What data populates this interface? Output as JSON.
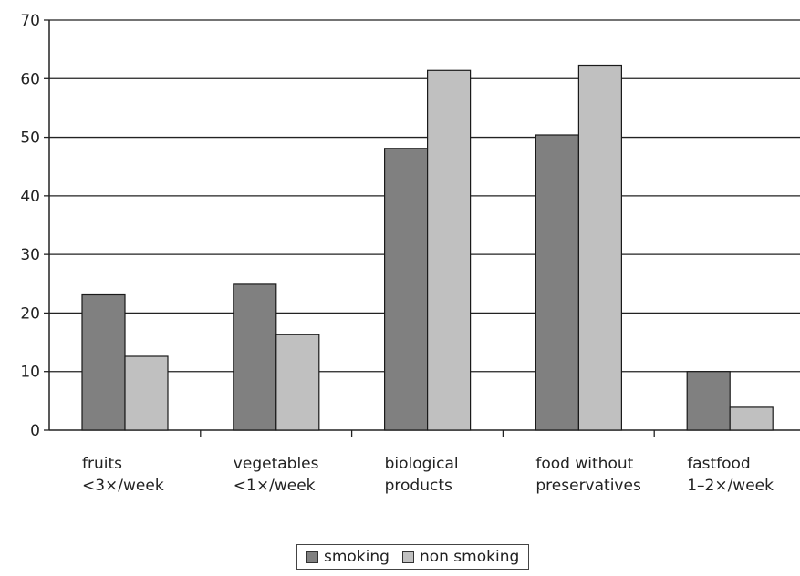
{
  "chart_data": {
    "type": "bar",
    "categories": [
      [
        "fruits",
        "<3×/week"
      ],
      [
        "vegetables",
        "<1×/week"
      ],
      [
        "biological",
        "products"
      ],
      [
        "food without",
        "preservatives"
      ],
      [
        "fastfood",
        "1–2×/week"
      ]
    ],
    "series": [
      {
        "name": "smoking",
        "values": [
          23.1,
          24.9,
          48.1,
          50.4,
          10.0
        ],
        "color": "#808080"
      },
      {
        "name": "non smoking",
        "values": [
          12.6,
          16.3,
          61.4,
          62.3,
          3.9
        ],
        "color": "#c0c0c0"
      }
    ],
    "ylim": [
      0,
      70
    ],
    "yticks": [
      0,
      10,
      20,
      30,
      40,
      50,
      60,
      70
    ],
    "grid": true,
    "legend": "bottom-center",
    "title": "",
    "xlabel": "",
    "ylabel": ""
  }
}
